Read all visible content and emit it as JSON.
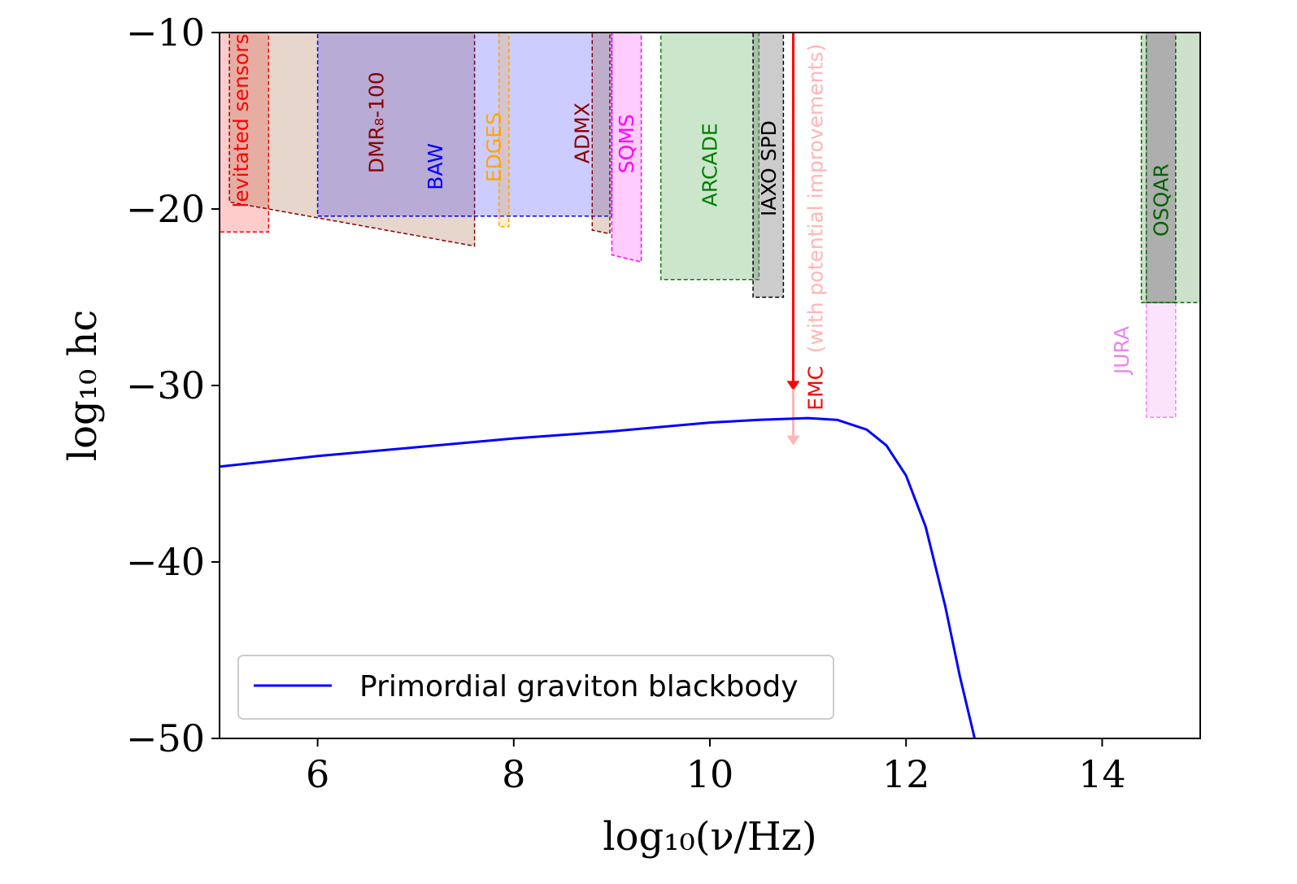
{
  "chart_data": {
    "type": "line",
    "xlabel": "log₁₀(ν/Hz)",
    "ylabel": "log₁₀ hc",
    "xlim": [
      5,
      15
    ],
    "ylim": [
      -50,
      -10
    ],
    "xticks": [
      6,
      8,
      10,
      12,
      14
    ],
    "xtick_labels": [
      "6",
      "8",
      "10",
      "12",
      "14"
    ],
    "yticks": [
      -10,
      -20,
      -30,
      -40,
      -50
    ],
    "ytick_labels": [
      "−10",
      "−20",
      "−30",
      "−40",
      "−50"
    ],
    "grid": false,
    "legend": {
      "position": "bottom-left",
      "entries": [
        "Primordial graviton blackbody"
      ]
    },
    "series": [
      {
        "name": "Primordial graviton blackbody",
        "color": "#0000ff",
        "x": [
          5.0,
          6.0,
          7.0,
          8.0,
          9.0,
          10.0,
          10.5,
          11.0,
          11.3,
          11.6,
          11.8,
          12.0,
          12.2,
          12.4,
          12.55,
          12.7
        ],
        "y": [
          -34.6,
          -34.0,
          -33.5,
          -33.0,
          -32.6,
          -32.1,
          -31.95,
          -31.85,
          -31.95,
          -32.5,
          -33.4,
          -35.1,
          -38.0,
          -42.5,
          -46.5,
          -50.0
        ]
      }
    ],
    "regions": [
      {
        "name": "levitated sensors",
        "label": "levitated sensors",
        "color": "#ff0000",
        "fill": "rgba(255,0,0,0.2)",
        "polygon": [
          [
            5.0,
            -10
          ],
          [
            5.5,
            -10
          ],
          [
            5.5,
            -21.3
          ],
          [
            5.0,
            -21.3
          ]
        ],
        "label_x": 5.22,
        "label_y": -15.0
      },
      {
        "name": "DMR8-100",
        "label": "DMR₈-100",
        "color": "#8b0000",
        "fill": "rgba(139,69,19,0.22)",
        "polygon": [
          [
            5.1,
            -10
          ],
          [
            7.6,
            -10
          ],
          [
            7.6,
            -22.1
          ],
          [
            5.1,
            -19.6
          ]
        ],
        "label_x": 6.6,
        "label_y": -15.1
      },
      {
        "name": "BAW",
        "label": "BAW",
        "color": "#0000ff",
        "fill": "rgba(0,0,255,0.2)",
        "polygon": [
          [
            6.0,
            -10
          ],
          [
            9.0,
            -10
          ],
          [
            9.0,
            -20.4
          ],
          [
            6.0,
            -20.4
          ]
        ],
        "label_x": 7.2,
        "label_y": -17.6
      },
      {
        "name": "EDGES",
        "label": "EDGES",
        "color": "#ffa500",
        "fill": "rgba(255,165,0,0.2)",
        "polygon": [
          [
            7.85,
            -10
          ],
          [
            7.95,
            -10
          ],
          [
            7.95,
            -21.0
          ],
          [
            7.85,
            -21.0
          ]
        ],
        "label_x": 7.8,
        "label_y": -16.5
      },
      {
        "name": "ADMX",
        "label": "ADMX",
        "color": "#8b0000",
        "fill": "rgba(139,69,19,0.22)",
        "polygon": [
          [
            8.8,
            -10
          ],
          [
            8.98,
            -10
          ],
          [
            8.98,
            -21.4
          ],
          [
            8.8,
            -21.2
          ]
        ],
        "label_x": 8.7,
        "label_y": -15.7
      },
      {
        "name": "SQMS",
        "label": "SQMS",
        "color": "#ff00ff",
        "fill": "rgba(255,0,255,0.2)",
        "polygon": [
          [
            9.0,
            -10
          ],
          [
            9.3,
            -10
          ],
          [
            9.3,
            -23.0
          ],
          [
            9.0,
            -22.6
          ]
        ],
        "label_x": 9.15,
        "label_y": -16.3
      },
      {
        "name": "ARCADE",
        "label": "ARCADE",
        "color": "#008000",
        "fill": "rgba(0,128,0,0.2)",
        "polygon": [
          [
            9.5,
            -10
          ],
          [
            10.5,
            -10
          ],
          [
            10.5,
            -24.0
          ],
          [
            9.5,
            -24.0
          ]
        ],
        "label_x": 10.0,
        "label_y": -17.5
      },
      {
        "name": "IAXO SPD",
        "label": "IAXO SPD",
        "color": "#000000",
        "fill": "rgba(128,128,128,0.4)",
        "polygon": [
          [
            10.44,
            -10
          ],
          [
            10.75,
            -10
          ],
          [
            10.75,
            -25.0
          ],
          [
            10.44,
            -25.0
          ]
        ],
        "label_x": 10.6,
        "label_y": -17.7
      },
      {
        "name": "JURA",
        "label": "JURA",
        "color": "#ee82ee",
        "fill": "rgba(238,130,238,0.22)",
        "polygon": [
          [
            14.45,
            -10
          ],
          [
            14.75,
            -10
          ],
          [
            14.75,
            -31.8
          ],
          [
            14.45,
            -31.8
          ]
        ],
        "label_x": 14.2,
        "label_y": -28.0
      },
      {
        "name": "OSQAR",
        "label": "OSQAR",
        "color": "#006400",
        "fill": "rgba(0,100,0,0.2)",
        "polygon": [
          [
            14.4,
            -10
          ],
          [
            15.0,
            -10
          ],
          [
            15.0,
            -25.3
          ],
          [
            14.4,
            -25.3
          ]
        ],
        "label_x": 14.6,
        "label_y": -19.5
      },
      {
        "name": "OSQAR overlap",
        "label": "",
        "color": "#006400",
        "fill": "rgba(128,128,128,0.38)",
        "polygon": [
          [
            14.45,
            -10
          ],
          [
            14.75,
            -10
          ],
          [
            14.75,
            -25.3
          ],
          [
            14.45,
            -25.3
          ]
        ],
        "label_x": 0,
        "label_y": 0
      }
    ],
    "arrows": [
      {
        "name": "EMC",
        "label": "EMC",
        "color": "#ff0000",
        "x": 10.85,
        "y_from": -10,
        "y_to": -30.2,
        "label_x": 11.08,
        "label_y": -30.15
      },
      {
        "name": "EMC potential improvements",
        "label": "(with potential improvements)",
        "color": "#ffb6b6",
        "x": 10.85,
        "y_from": -30.2,
        "y_to": -33.3,
        "label_x": 11.08,
        "label_y": -19.4
      }
    ]
  }
}
